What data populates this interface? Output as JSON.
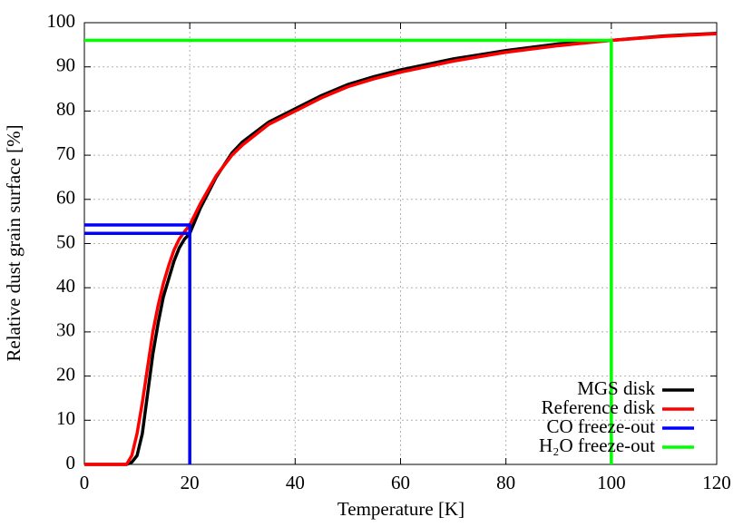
{
  "chart_data": {
    "type": "line",
    "xlabel": "Temperature [K]",
    "ylabel": "Relative dust grain surface [%]",
    "xlim": [
      0,
      120
    ],
    "xticks": [
      0,
      20,
      40,
      60,
      80,
      100,
      120
    ],
    "ylim": [
      0,
      100
    ],
    "yticks": [
      0,
      10,
      20,
      30,
      40,
      50,
      60,
      70,
      80,
      90,
      100
    ],
    "grid": true,
    "legend": "lower right",
    "series": [
      {
        "name": "MGS disk",
        "color": "#000000",
        "x": [
          0,
          5,
          8,
          9,
          10,
          11,
          12,
          13,
          14,
          15,
          16,
          17,
          18,
          19,
          20,
          22,
          25,
          28,
          30,
          35,
          40,
          45,
          50,
          55,
          60,
          70,
          80,
          90,
          100,
          110,
          120
        ],
        "values": [
          0,
          0,
          0,
          0.5,
          2,
          7,
          16,
          25,
          32,
          38,
          42,
          46,
          49,
          51,
          52.3,
          58,
          65,
          70.5,
          73,
          77.5,
          80.5,
          83.5,
          86,
          87.8,
          89.3,
          91.8,
          93.7,
          95.2,
          96,
          97,
          97.6
        ]
      },
      {
        "name": "Reference disk",
        "color": "#ff0000",
        "x": [
          0,
          5,
          8,
          9,
          10,
          11,
          12,
          13,
          14,
          15,
          16,
          17,
          18,
          19,
          20,
          22,
          25,
          28,
          30,
          35,
          40,
          45,
          50,
          55,
          60,
          70,
          80,
          90,
          100,
          110,
          120
        ],
        "values": [
          0,
          0,
          0,
          2,
          7,
          14,
          22,
          30,
          36,
          41,
          45,
          48.5,
          51,
          52.7,
          54.2,
          59,
          65.3,
          70,
          72.3,
          77,
          80,
          83,
          85.5,
          87.3,
          88.8,
          91.3,
          93.3,
          94.8,
          96,
          96.9,
          97.5
        ]
      },
      {
        "name": "CO freeze-out",
        "color": "#0000ff",
        "x": [
          0,
          20,
          20,
          20,
          0,
          20
        ],
        "values": [
          54.2,
          54.2,
          0,
          null,
          52.3,
          52.3
        ]
      },
      {
        "name": "H₂O freeze-out",
        "color": "#00ff00",
        "x": [
          0,
          100,
          100
        ],
        "values": [
          96,
          96,
          0
        ]
      }
    ]
  }
}
